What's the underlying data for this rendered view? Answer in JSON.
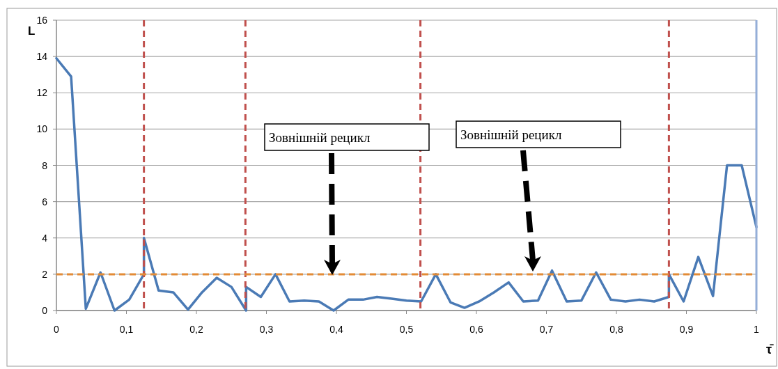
{
  "chart_data": {
    "type": "line",
    "xlabel": "τ̄",
    "ylabel": "L",
    "x": [
      0,
      0.021,
      0.042,
      0.063,
      0.083,
      0.104,
      0.125,
      0.125,
      0.146,
      0.167,
      0.188,
      0.208,
      0.229,
      0.25,
      0.271,
      0.271,
      0.292,
      0.313,
      0.333,
      0.354,
      0.375,
      0.396,
      0.417,
      0.438,
      0.458,
      0.479,
      0.5,
      0.521,
      0.542,
      0.563,
      0.583,
      0.604,
      0.625,
      0.646,
      0.667,
      0.688,
      0.708,
      0.729,
      0.75,
      0.771,
      0.792,
      0.813,
      0.833,
      0.854,
      0.875,
      0.875,
      0.896,
      0.917,
      0.938,
      0.958,
      0.979,
      1
    ],
    "series": [
      {
        "color": "#4a7ab5",
        "values": [
          13.9,
          12.9,
          0.1,
          2.1,
          0,
          0.6,
          2,
          4,
          1.1,
          1,
          0.05,
          1,
          1.8,
          1.3,
          0,
          1.3,
          0.75,
          2,
          0.5,
          0.55,
          0.5,
          0,
          0.6,
          0.6,
          0.75,
          0.65,
          0.55,
          0.5,
          2,
          0.45,
          0.15,
          0.5,
          1,
          1.55,
          0.5,
          0.55,
          2.2,
          0.5,
          0.55,
          2.1,
          0.6,
          0.5,
          0.6,
          0.5,
          0.75,
          2,
          0.5,
          2.95,
          0.8,
          8,
          8,
          4.6
        ]
      }
    ],
    "xlim": [
      0,
      1
    ],
    "ylim": [
      0,
      16
    ],
    "xticks": [
      0,
      {
        "value": 0.1,
        "label": "0,1"
      },
      {
        "value": 0.2,
        "label": "0,2"
      },
      {
        "value": 0.3,
        "label": "0,3"
      },
      {
        "value": 0.4,
        "label": "0,4"
      },
      {
        "value": 0.5,
        "label": "0,5"
      },
      {
        "value": 0.6,
        "label": "0,6"
      },
      {
        "value": 0.7,
        "label": "0,7"
      },
      {
        "value": 0.8,
        "label": "0,8"
      },
      {
        "value": 0.9,
        "label": "0,9"
      },
      1
    ],
    "yticks": [
      0,
      2,
      4,
      6,
      8,
      10,
      12,
      14,
      16
    ],
    "grid": "y",
    "marker": "none",
    "line_style": "solid",
    "ref_lines": [
      {
        "axis": "x",
        "value": 0.125,
        "color": "#c0504d",
        "line_style": "dashed"
      },
      {
        "axis": "x",
        "value": 0.27,
        "color": "#c0504d",
        "line_style": "dashed"
      },
      {
        "axis": "x",
        "value": 0.52,
        "color": "#c0504d",
        "line_style": "dashed"
      },
      {
        "axis": "x",
        "value": 0.875,
        "color": "#c0504d",
        "line_style": "dashed"
      },
      {
        "axis": "x",
        "value": 1,
        "color": "#94aed8",
        "line_style": "solid"
      },
      {
        "axis": "y",
        "value": 2,
        "color": "#e38b36",
        "line_style": "dashed"
      }
    ],
    "annotations": [
      "Зовнішній рецикл",
      "Зовнішній рецикл"
    ]
  }
}
